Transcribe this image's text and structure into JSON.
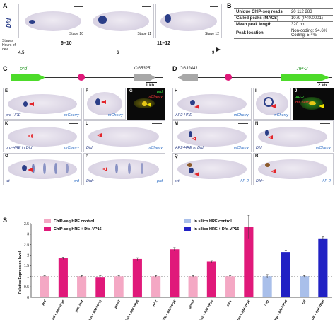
{
  "panels": {
    "A": "A",
    "B": "B",
    "C": "C",
    "D": "D",
    "E": "E",
    "F": "F",
    "G": "G",
    "H": "H",
    "I": "I",
    "J": "J",
    "K": "K",
    "L": "L",
    "M": "M",
    "N": "N",
    "O": "O",
    "P": "P",
    "Q": "Q",
    "R": "R",
    "S": "S"
  },
  "panelA": {
    "gene_label": "Dfd",
    "stages": [
      "Stage 10",
      "Stage 11",
      "Stage 12"
    ],
    "stages_row_label": "Stages",
    "hours_row_label": "Hours of dev.",
    "stage_ranges": [
      "9–10",
      "11–12"
    ],
    "hour_ticks": [
      "4.5",
      "6",
      "9"
    ]
  },
  "panelB": {
    "rows": [
      {
        "label": "Unique ChIP-seq reads",
        "value": "20 112 283"
      },
      {
        "label": "Called peaks (MACS)",
        "value": "1079 (P<0.0001)"
      },
      {
        "label": "Mean peak length",
        "value": "320 bp"
      },
      {
        "label": "Peak location",
        "value": "Non-coding: 94.6%",
        "value2": "Coding: 5.4%"
      }
    ]
  },
  "panelC": {
    "gene1": "prd",
    "gene2": "CG5325",
    "scale": "1 kb"
  },
  "panelD": {
    "gene1": "CG32441",
    "gene2": "AP-2",
    "scale": "2 kb"
  },
  "embryo_labels": {
    "E_left": "prd-HRE",
    "E_right": "mCherry",
    "F_right": "mCherry",
    "G_top": "prd",
    "G_bottom": "mCherry",
    "H_left": "AP2-HRE",
    "H_right": "mCherry",
    "I_right": "mCherry",
    "J_top": "AP-2",
    "J_bottom": "mCherry",
    "K_left": "prd-HRE in Dfd⁻",
    "K_right": "mCherry",
    "L_left": "Dfd⁻",
    "L_right": "mCherry",
    "M_left": "AP2-HRE in Dfd⁻",
    "M_right": "mCherry",
    "N_left": "Dfd⁻",
    "N_right": "mCherry",
    "O_left": "wt",
    "O_right": "prd",
    "P_left": "Dfd⁻",
    "P_right": "prd",
    "Q_left": "wt",
    "Q_right": "AP-2",
    "R_left": "Dfd⁻",
    "R_right": "AP-2"
  },
  "colors": {
    "chip_control": "#f4a8c4",
    "chip_vp16": "#e0197a",
    "silico_control": "#a9bfea",
    "silico_vp16": "#2121c4",
    "arrow": "#e3262b"
  },
  "chart_data": {
    "type": "bar",
    "ylabel": "Relative Expression level",
    "ylim": [
      0,
      3.5
    ],
    "yticks": [
      "0",
      "0.5",
      "1",
      "1.5",
      "2",
      "2.5",
      "3",
      "3.5"
    ],
    "legend": [
      {
        "name": "ChIP-seq HRE control",
        "color": "#f4a8c4"
      },
      {
        "name": "ChIP-seq HRE + Dfd-VP16",
        "color": "#e0197a"
      },
      {
        "name": "In silico HRE control",
        "color": "#a9bfea"
      },
      {
        "name": "In silico HRE + Dfd-VP16",
        "color": "#2121c4"
      }
    ],
    "categories": [
      "prd",
      "prd + Dfd-VP16",
      "prd_mut",
      "prd_mut + Dfd-VP16",
      "pdm2",
      "pdm2 + Dfd-VP16",
      "AP2",
      "AP2 + Dfd-VP16",
      "grim2",
      "grim2 + Dfd-VP16",
      "ems",
      "ems + Dfd-VP16",
      "osp",
      "osp + Dfd-VP16",
      "Dll",
      "Dll + Dfd-VP16"
    ],
    "values": [
      1.0,
      1.85,
      1.0,
      0.97,
      1.0,
      1.82,
      1.0,
      2.28,
      1.0,
      1.7,
      1.0,
      3.35,
      1.0,
      2.15,
      1.0,
      2.8
    ],
    "errors": [
      0.03,
      0.05,
      0.03,
      0.05,
      0.03,
      0.06,
      0.03,
      0.08,
      0.03,
      0.05,
      0.03,
      0.55,
      0.08,
      0.08,
      0.03,
      0.07
    ],
    "group": [
      "chip_control",
      "chip_vp16",
      "chip_control",
      "chip_vp16",
      "chip_control",
      "chip_vp16",
      "chip_control",
      "chip_vp16",
      "chip_control",
      "chip_vp16",
      "chip_control",
      "chip_vp16",
      "silico_control",
      "silico_vp16",
      "silico_control",
      "silico_vp16"
    ],
    "reference_line": 1
  }
}
